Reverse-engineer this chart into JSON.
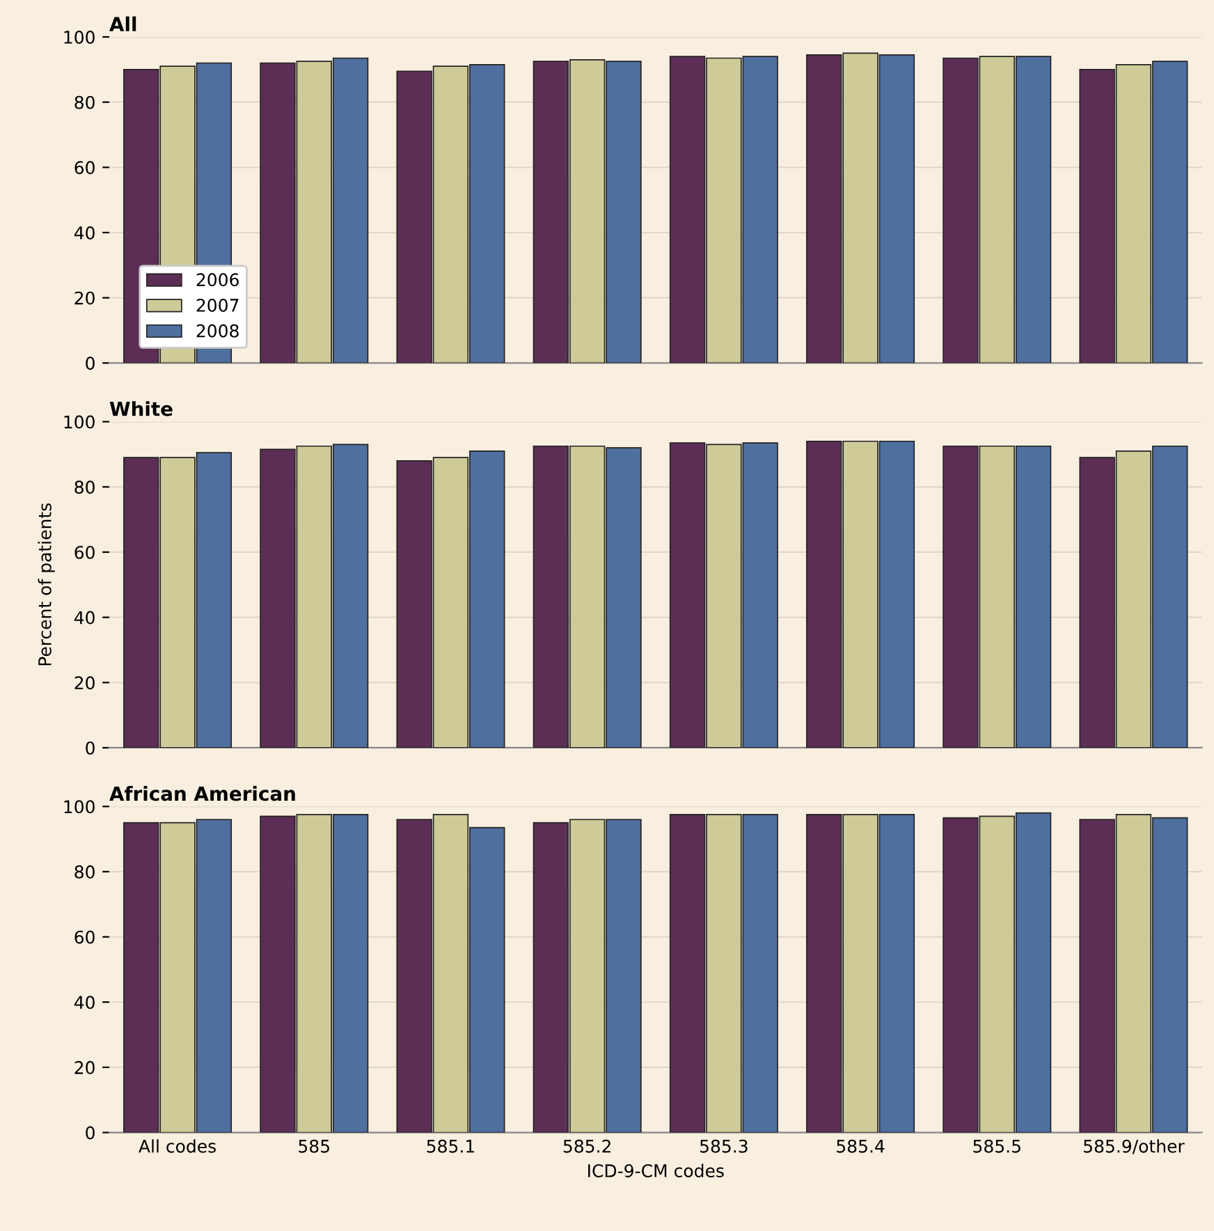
{
  "chart_data": [
    {
      "type": "bar",
      "title": "All",
      "categories": [
        null,
        null,
        null,
        null,
        null,
        null,
        null,
        null
      ],
      "ylim": [
        0,
        100
      ],
      "yticks": [
        0,
        20,
        40,
        60,
        80,
        100
      ],
      "grid": "y",
      "legend": "bottom left",
      "tick_labels": "y",
      "series": [
        {
          "name": "2006",
          "color": "#5c2e55",
          "values": [
            90,
            92,
            89.5,
            92.5,
            94,
            94.5,
            93.5,
            90
          ]
        },
        {
          "name": "2007",
          "color": "#cfcb98",
          "values": [
            91,
            92.5,
            91,
            93,
            93.5,
            95,
            94,
            91.5
          ]
        },
        {
          "name": "2008",
          "color": "#4f6f9e",
          "values": [
            92,
            93.5,
            91.5,
            92.5,
            94,
            94.5,
            94,
            92.5
          ]
        }
      ]
    },
    {
      "type": "bar",
      "title": "White",
      "ylabel": "Percent of patients",
      "categories": [
        null,
        null,
        null,
        null,
        null,
        null,
        null,
        null
      ],
      "ylim": [
        0,
        100
      ],
      "yticks": [
        0,
        20,
        40,
        60,
        80,
        100
      ],
      "grid": "y",
      "tick_labels": "y",
      "series": [
        {
          "name": "2006",
          "color": "#5c2e55",
          "values": [
            89,
            91.5,
            88,
            92.5,
            93.5,
            94,
            92.5,
            89
          ]
        },
        {
          "name": "2007",
          "color": "#cfcb98",
          "values": [
            89,
            92.5,
            89,
            92.5,
            93,
            94,
            92.5,
            91
          ]
        },
        {
          "name": "2008",
          "color": "#4f6f9e",
          "values": [
            90.5,
            93,
            91,
            92,
            93.5,
            94,
            92.5,
            92.5
          ]
        }
      ]
    },
    {
      "type": "bar",
      "title": "African American",
      "xlabel": "ICD-9-CM codes",
      "categories": [
        "All codes",
        "585",
        "585.1",
        "585.2",
        "585.3",
        "585.4",
        "585.5",
        "585.9/other"
      ],
      "ylim": [
        0,
        100
      ],
      "yticks": [
        0,
        20,
        40,
        60,
        80,
        100
      ],
      "grid": "y",
      "series": [
        {
          "name": "2006",
          "color": "#5c2e55",
          "values": [
            95,
            97,
            96,
            95,
            97.5,
            97.5,
            96.5,
            96
          ]
        },
        {
          "name": "2007",
          "color": "#cfcb98",
          "values": [
            95,
            97.5,
            97.5,
            96,
            97.5,
            97.5,
            97,
            97.5
          ]
        },
        {
          "name": "2008",
          "color": "#4f6f9e",
          "values": [
            96,
            97.5,
            93.5,
            96,
            97.5,
            97.5,
            98,
            96.5
          ]
        }
      ]
    }
  ]
}
